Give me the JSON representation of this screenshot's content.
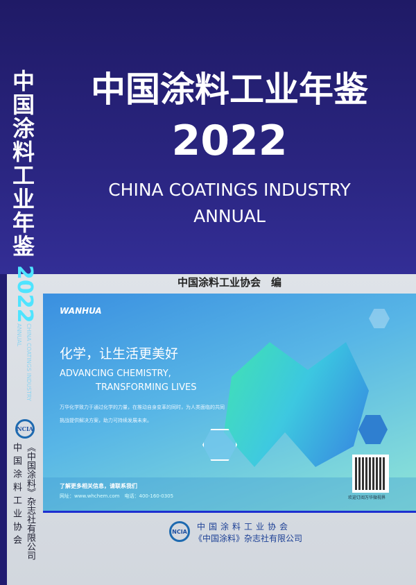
{
  "cover": {
    "title": "中国涂料工业年鉴",
    "year": "2022",
    "english_line1": "CHINA COATINGS INDUSTRY",
    "english_line2": "ANNUAL",
    "editor": "中国涂料工业协会　编"
  },
  "spine": {
    "title": "中国涂料工业年鉴",
    "year": "2022",
    "english_line1": "CHINA COATINGS INDUSTRY",
    "english_line2": "ANNUAL",
    "logo": "NCIA",
    "publisher1": "《中国涂料》杂志社有限公司",
    "publisher2": "中国涂料工业协会"
  },
  "ad": {
    "brand": "WANHUA",
    "headline_cn": "化学，让生活更美好",
    "headline_en1": "ADVANCING CHEMISTRY,",
    "headline_en2": "TRANSFORMING LIVES",
    "body": "万华化学致力于通过化学的力量，在推动自身变革的同时，为人类面临的共同挑战提供解决方案，助力可持续发展未来。",
    "contact_title": "了解更多相关信息，请联系我们",
    "contact_info": "网址：www.whchem.com　电话：400-160-0305",
    "qr_caption": "欢迎订阅万华微视界"
  },
  "footer": {
    "logo": "NCIA",
    "line1": "中国涂料工业协会",
    "line2": "《中国涂料》杂志社有限公司"
  },
  "colors": {
    "navy": "#2a2580",
    "cyan_year": "#4fe4ff",
    "publisher_blue": "#1b3f95"
  }
}
